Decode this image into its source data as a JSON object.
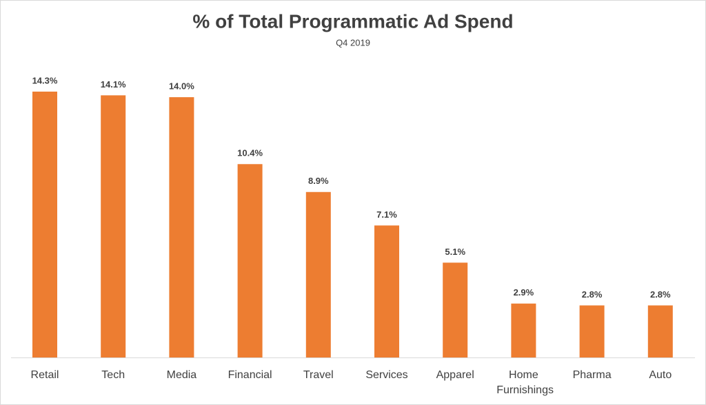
{
  "chart_data": {
    "type": "bar",
    "title": "% of Total Programmatic Ad Spend",
    "subtitle": "Q4 2019",
    "categories": [
      "Retail",
      "Tech",
      "Media",
      "Financial",
      "Travel",
      "Services",
      "Apparel",
      "Home Furnishings",
      "Pharma",
      "Auto"
    ],
    "values": [
      14.3,
      14.1,
      14.0,
      10.4,
      8.9,
      7.1,
      5.1,
      2.9,
      2.8,
      2.8
    ],
    "value_labels": [
      "14.3%",
      "14.1%",
      "14.0%",
      "10.4%",
      "8.9%",
      "7.1%",
      "5.1%",
      "2.9%",
      "2.8%",
      "2.8%"
    ],
    "color": "#ed7d31"
  }
}
